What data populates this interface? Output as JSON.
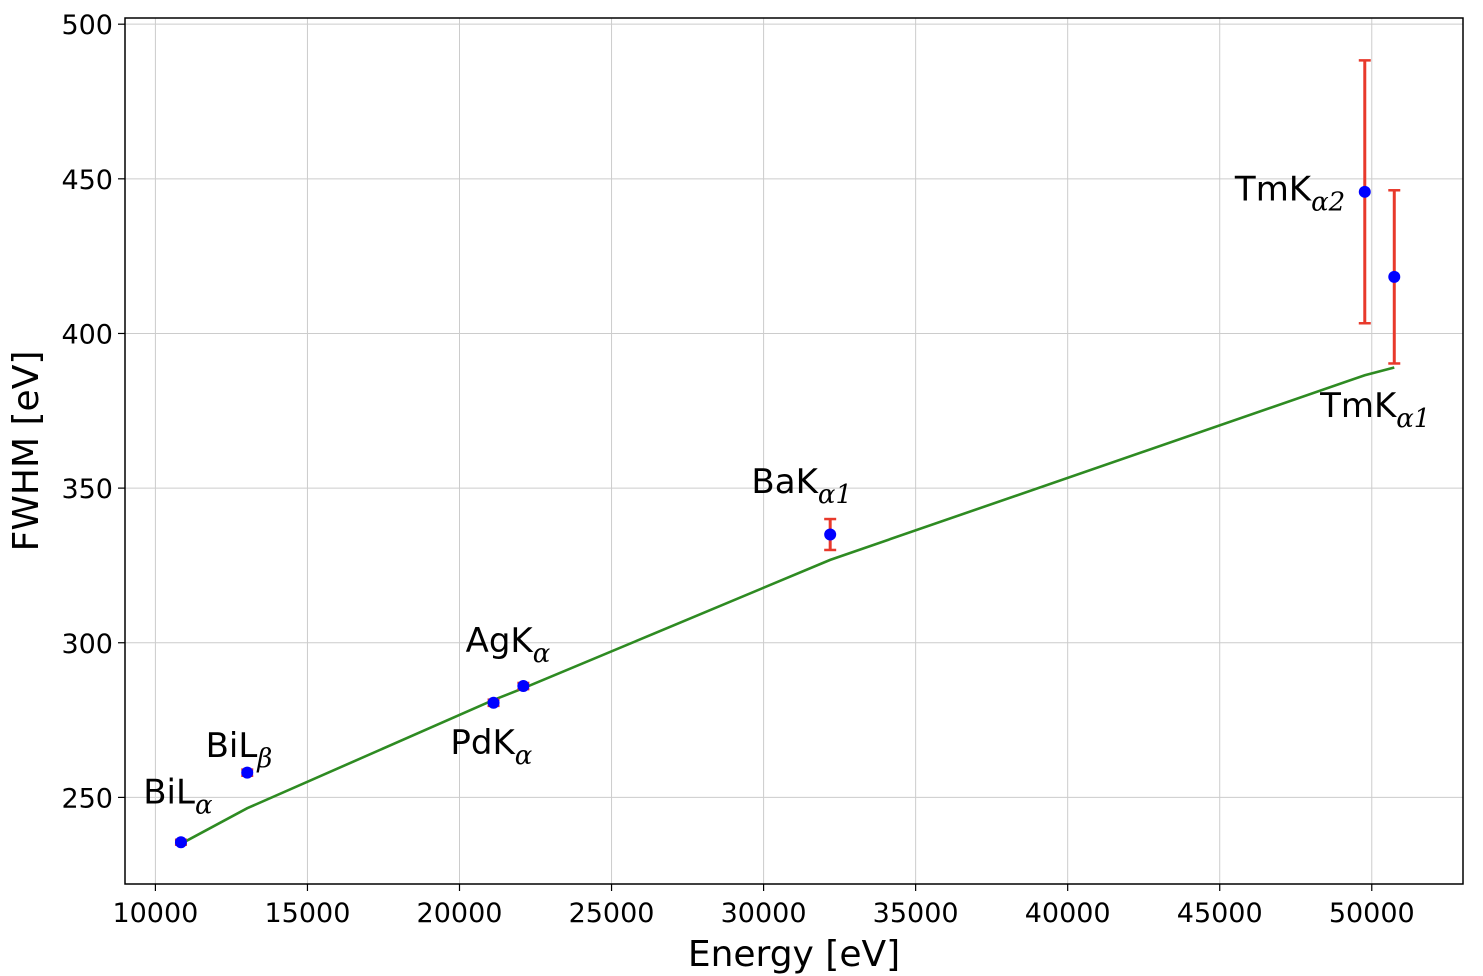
{
  "chart_data": {
    "type": "scatter",
    "title": "",
    "xlabel": "Energy [eV]",
    "ylabel": "FWHM [eV]",
    "xlim": [
      9000,
      53000
    ],
    "ylim": [
      222,
      502
    ],
    "xticks": [
      10000,
      15000,
      20000,
      25000,
      30000,
      35000,
      40000,
      45000,
      50000
    ],
    "yticks": [
      250,
      300,
      350,
      400,
      450,
      500
    ],
    "grid": true,
    "colors": {
      "points": "#0000ff",
      "errorbars": "#e8392b",
      "fit": "#2e8b22"
    },
    "points": [
      {
        "x": 10840,
        "y": 235.5,
        "err": 0.8
      },
      {
        "x": 13020,
        "y": 258.0,
        "err": 1.0
      },
      {
        "x": 21120,
        "y": 280.6,
        "err": 1.0
      },
      {
        "x": 22100,
        "y": 286.0,
        "err": 1.0
      },
      {
        "x": 32190,
        "y": 335.0,
        "err": 5.0
      },
      {
        "x": 49770,
        "y": 445.8,
        "err": 42.5
      },
      {
        "x": 50740,
        "y": 418.3,
        "err": 28.0
      }
    ],
    "fit": {
      "x": [
        10840,
        13020,
        21120,
        22100,
        32190,
        49770,
        50740
      ],
      "y": [
        235.0,
        246.5,
        281.5,
        285.3,
        326.8,
        386.5,
        389.0
      ]
    },
    "annotations": [
      {
        "main": "BiL",
        "sub": "α",
        "x": 9600,
        "y": 248
      },
      {
        "main": "BiL",
        "sub": "β",
        "x": 11650,
        "y": 263
      },
      {
        "main": "PdK",
        "sub": "α",
        "x": 19700,
        "y": 264
      },
      {
        "main": "AgK",
        "sub": "α",
        "x": 20200,
        "y": 297
      },
      {
        "main": "BaK",
        "sub": "α1",
        "x": 29600,
        "y": 348.5
      },
      {
        "main": "TmK",
        "sub": "α2",
        "x": 45500,
        "y": 443
      },
      {
        "main": "TmK",
        "sub": "α1",
        "x": 48300,
        "y": 373
      }
    ]
  }
}
